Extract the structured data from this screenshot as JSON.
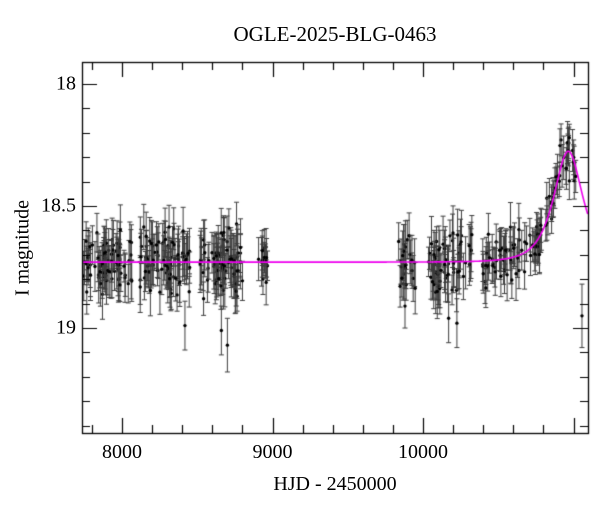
{
  "chart_data": {
    "type": "scatter",
    "title": "OGLE-2025-BLG-0463",
    "xlabel": "HJD - 2450000",
    "ylabel": "I magnitude",
    "x_min": 7734,
    "x_max": 11096,
    "y_top_mag": 17.91,
    "y_bottom_mag": 19.43,
    "y_axis_inverted": true,
    "grid": false,
    "legend": "none",
    "x_ticks": [
      {
        "value": 8000,
        "label": "8000"
      },
      {
        "value": 9000,
        "label": "9000"
      },
      {
        "value": 10000,
        "label": "10000"
      }
    ],
    "x_minor_step": 200,
    "y_ticks": [
      {
        "value": 18,
        "label": "18"
      },
      {
        "value": 18.5,
        "label": "18.5"
      },
      {
        "value": 19,
        "label": "19"
      }
    ],
    "y_minor_step": 0.1,
    "colors": {
      "background": "#ffffff",
      "axis": "#000000",
      "point": "#000000",
      "error_bar": "#3d3d3d",
      "model_curve": "#ee00ee"
    },
    "marker": {
      "radius": 1.7,
      "cap_half_width": 2.5
    },
    "model": {
      "type": "paczynski-microlensing",
      "baseline_I0": 18.73,
      "t0": 10965,
      "tE": 131,
      "u0": 0.81,
      "peak_mag": 18.37
    },
    "seasons": [
      {
        "name": "season-2017",
        "t_start": 7745,
        "t_end": 8070,
        "n_points": 78,
        "mean_offset": 0,
        "scatter_sigma": 0.055,
        "err_min": 0.06,
        "err_max": 0.11,
        "seed": 11
      },
      {
        "name": "season-2018",
        "t_start": 8120,
        "t_end": 8450,
        "n_points": 80,
        "mean_offset": 0,
        "scatter_sigma": 0.06,
        "err_min": 0.06,
        "err_max": 0.11,
        "seed": 22
      },
      {
        "name": "season-2019",
        "t_start": 8505,
        "t_end": 8800,
        "n_points": 72,
        "mean_offset": 0,
        "scatter_sigma": 0.065,
        "err_min": 0.06,
        "err_max": 0.12,
        "seed": 33
      },
      {
        "name": "season-2019b",
        "t_start": 8905,
        "t_end": 8968,
        "n_points": 14,
        "mean_offset": 0,
        "scatter_sigma": 0.05,
        "err_min": 0.06,
        "err_max": 0.1,
        "seed": 44
      },
      {
        "name": "season-2022",
        "t_start": 9830,
        "t_end": 9958,
        "n_points": 24,
        "mean_offset": 0.02,
        "scatter_sigma": 0.06,
        "err_min": 0.06,
        "err_max": 0.11,
        "seed": 55
      },
      {
        "name": "season-2023",
        "t_start": 10030,
        "t_end": 10325,
        "n_points": 62,
        "mean_offset": 0.01,
        "scatter_sigma": 0.065,
        "err_min": 0.06,
        "err_max": 0.12,
        "seed": 66
      },
      {
        "name": "season-2024",
        "t_start": 10395,
        "t_end": 10695,
        "n_points": 48,
        "mean_offset": 0,
        "scatter_sigma": 0.055,
        "err_min": 0.06,
        "err_max": 0.11,
        "seed": 77
      },
      {
        "name": "season-2025-event",
        "t_start": 10705,
        "t_end": 11020,
        "n_points": 56,
        "mean_offset": 0,
        "scatter_sigma": 0.05,
        "err_min": 0.05,
        "err_max": 0.09,
        "seed": 88
      }
    ],
    "outliers": [
      {
        "t": 8418,
        "mag": 18.99,
        "err": 0.1
      },
      {
        "t": 8660,
        "mag": 19.01,
        "err": 0.1
      },
      {
        "t": 8700,
        "mag": 19.07,
        "err": 0.11
      },
      {
        "t": 9880,
        "mag": 18.91,
        "err": 0.09
      },
      {
        "t": 10170,
        "mag": 18.96,
        "err": 0.1
      },
      {
        "t": 10225,
        "mag": 18.98,
        "err": 0.1
      },
      {
        "t": 10972,
        "mag": 18.22,
        "err": 0.055
      },
      {
        "t": 11056,
        "mag": 18.95,
        "err": 0.13
      }
    ]
  }
}
